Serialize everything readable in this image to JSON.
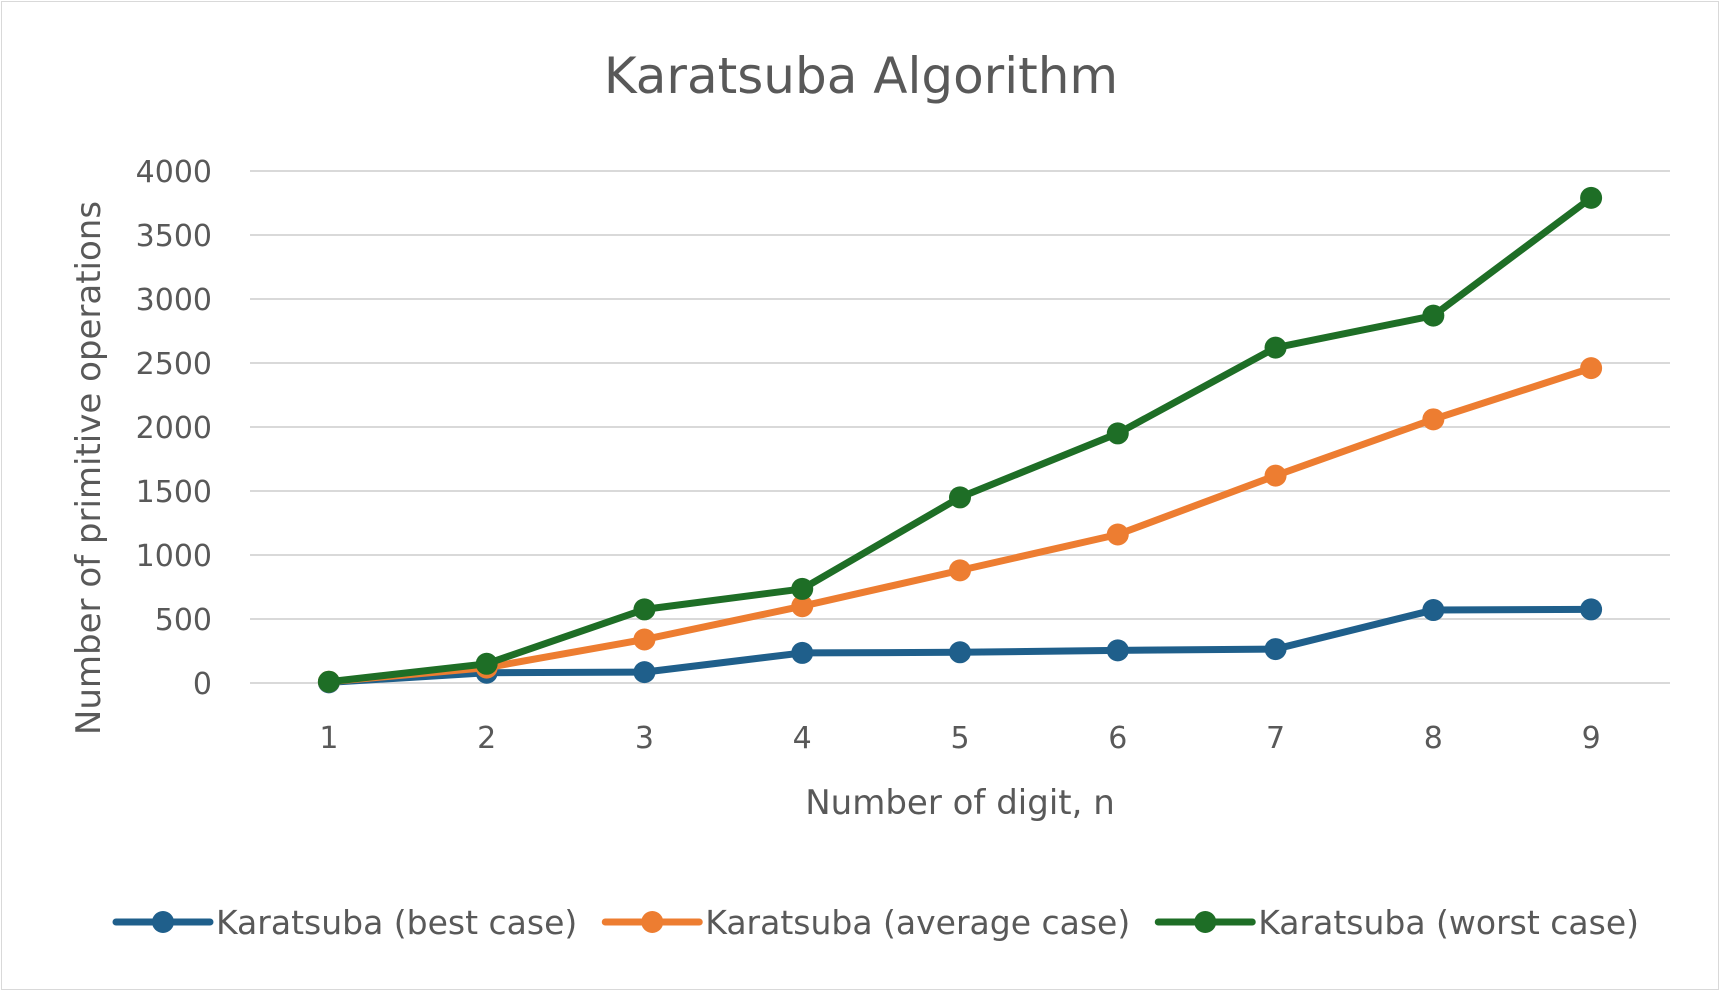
{
  "chart_data": {
    "type": "line",
    "title": "Karatsuba Algorithm",
    "xlabel": "Number of digit, n",
    "ylabel": "Number of primitive operations",
    "categories": [
      "1",
      "2",
      "3",
      "4",
      "5",
      "6",
      "7",
      "8",
      "9"
    ],
    "y_ticks": [
      "0",
      "500",
      "1000",
      "1500",
      "2000",
      "2500",
      "3000",
      "3500",
      "4000"
    ],
    "ylim": [
      0,
      4000
    ],
    "grid": true,
    "legend_position": "bottom",
    "series": [
      {
        "name": "Karatsuba (best case)",
        "color": "#1f5f8b",
        "values": [
          5,
          80,
          85,
          235,
          240,
          255,
          265,
          570,
          575
        ]
      },
      {
        "name": "Karatsuba (average case)",
        "color": "#ed7d31",
        "values": [
          10,
          120,
          340,
          600,
          880,
          1160,
          1620,
          2060,
          2460
        ]
      },
      {
        "name": "Karatsuba (worst case)",
        "color": "#1e6e26",
        "values": [
          10,
          150,
          575,
          735,
          1450,
          1950,
          2620,
          2870,
          3790
        ]
      }
    ]
  }
}
